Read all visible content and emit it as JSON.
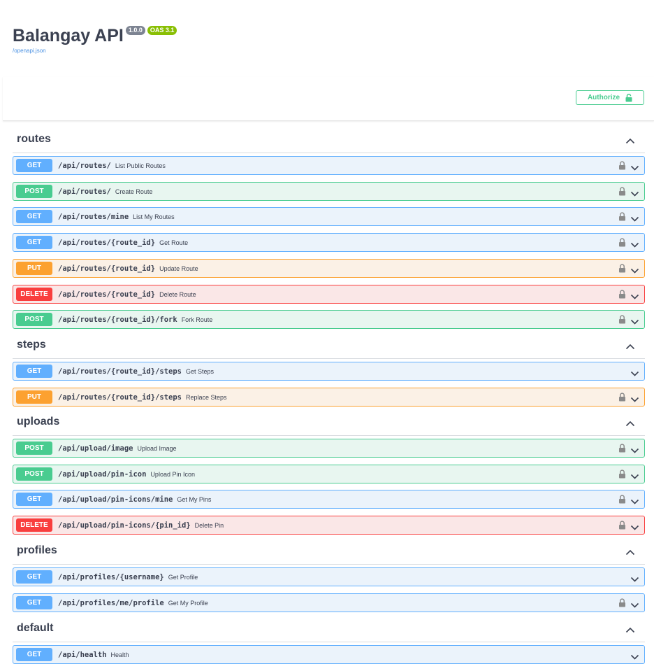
{
  "info": {
    "title": "Balangay API",
    "version": "1.0.0",
    "oas": "OAS 3.1",
    "spec_link": "/openapi.json"
  },
  "authorize": {
    "label": "Authorize"
  },
  "colors": {
    "get": "#61affe",
    "post": "#49cc90",
    "put": "#fca130",
    "delete": "#f93e3e",
    "version_badge": "#7d8492",
    "oas_badge": "#89bf04"
  },
  "tags": [
    {
      "name": "routes",
      "operations": [
        {
          "method": "GET",
          "path": "/api/routes/",
          "summary": "List Public Routes",
          "locked": true
        },
        {
          "method": "POST",
          "path": "/api/routes/",
          "summary": "Create Route",
          "locked": true
        },
        {
          "method": "GET",
          "path": "/api/routes/mine",
          "summary": "List My Routes",
          "locked": true
        },
        {
          "method": "GET",
          "path": "/api/routes/{route_id}",
          "summary": "Get Route",
          "locked": true
        },
        {
          "method": "PUT",
          "path": "/api/routes/{route_id}",
          "summary": "Update Route",
          "locked": true
        },
        {
          "method": "DELETE",
          "path": "/api/routes/{route_id}",
          "summary": "Delete Route",
          "locked": true
        },
        {
          "method": "POST",
          "path": "/api/routes/{route_id}/fork",
          "summary": "Fork Route",
          "locked": true
        }
      ]
    },
    {
      "name": "steps",
      "operations": [
        {
          "method": "GET",
          "path": "/api/routes/{route_id}/steps",
          "summary": "Get Steps",
          "locked": false
        },
        {
          "method": "PUT",
          "path": "/api/routes/{route_id}/steps",
          "summary": "Replace Steps",
          "locked": true
        }
      ]
    },
    {
      "name": "uploads",
      "operations": [
        {
          "method": "POST",
          "path": "/api/upload/image",
          "summary": "Upload Image",
          "locked": true
        },
        {
          "method": "POST",
          "path": "/api/upload/pin-icon",
          "summary": "Upload Pin Icon",
          "locked": true
        },
        {
          "method": "GET",
          "path": "/api/upload/pin-icons/mine",
          "summary": "Get My Pins",
          "locked": true
        },
        {
          "method": "DELETE",
          "path": "/api/upload/pin-icons/{pin_id}",
          "summary": "Delete Pin",
          "locked": true
        }
      ]
    },
    {
      "name": "profiles",
      "operations": [
        {
          "method": "GET",
          "path": "/api/profiles/{username}",
          "summary": "Get Profile",
          "locked": false
        },
        {
          "method": "GET",
          "path": "/api/profiles/me/profile",
          "summary": "Get My Profile",
          "locked": true
        }
      ]
    },
    {
      "name": "default",
      "operations": [
        {
          "method": "GET",
          "path": "/api/health",
          "summary": "Health",
          "locked": false
        }
      ]
    }
  ]
}
